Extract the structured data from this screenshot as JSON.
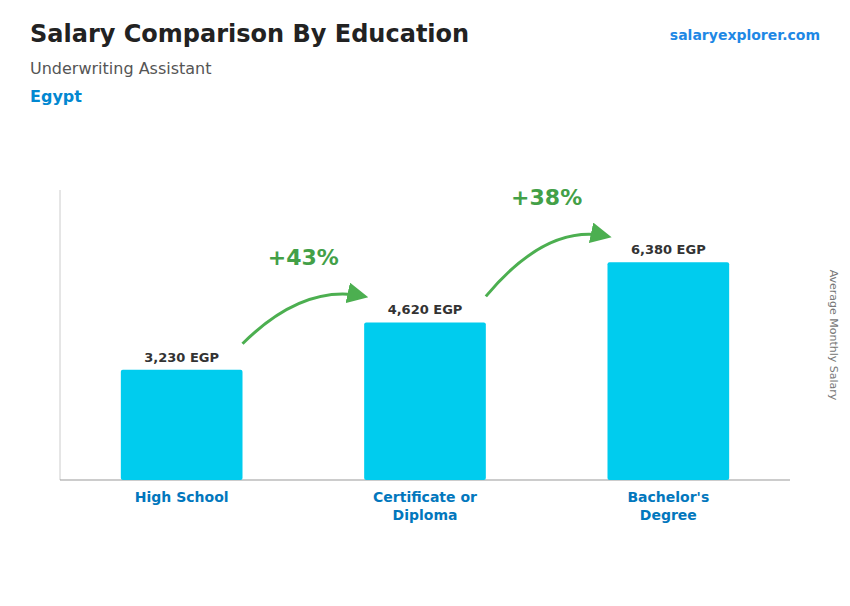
{
  "chart_data": {
    "type": "bar",
    "title": "Salary Comparison By Education",
    "subtitle": "Underwriting Assistant",
    "country": "Egypt",
    "source": "salaryexplorer.com",
    "y_label": "Average Monthly Salary",
    "categories": [
      "High School",
      "Certificate or\nDiploma",
      "Bachelor's\nDegree"
    ],
    "values": [
      3230,
      4620,
      6380
    ],
    "value_labels": [
      "3,230 EGP",
      "4,620 EGP",
      "6,380 EGP"
    ],
    "data_labels": true,
    "annotations": [
      "+43%",
      "+38%"
    ],
    "color": "#00ccee",
    "ylim": [
      0,
      8500
    ],
    "tick_labels": "x"
  }
}
